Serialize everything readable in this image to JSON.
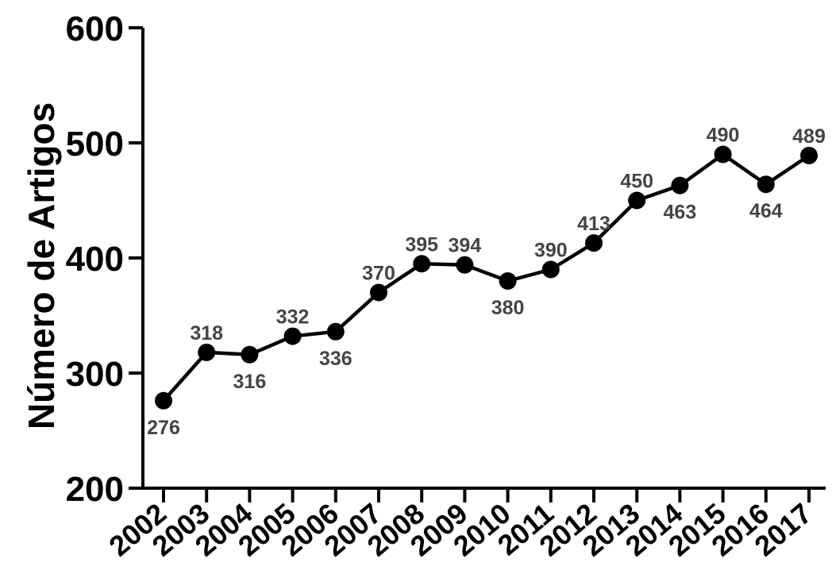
{
  "chart_data": {
    "type": "line",
    "title": "",
    "xlabel": "",
    "ylabel": "Número de Artigos",
    "ylim": [
      200,
      600
    ],
    "yticks": [
      200,
      300,
      400,
      500,
      600
    ],
    "grid": false,
    "categories": [
      "2002",
      "2003",
      "2004",
      "2005",
      "2006",
      "2007",
      "2008",
      "2009",
      "2010",
      "2011",
      "2012",
      "2013",
      "2014",
      "2015",
      "2016",
      "2017"
    ],
    "series": [
      {
        "values": [
          276,
          318,
          316,
          332,
          336,
          370,
          395,
          394,
          380,
          390,
          413,
          450,
          463,
          490,
          464,
          489
        ],
        "labels": [
          "276",
          "318",
          "316",
          "332",
          "336",
          "370",
          "395",
          "394",
          "380",
          "390",
          "413",
          "450",
          "463",
          "490",
          "464",
          "489"
        ],
        "label_positions": [
          "below",
          "above",
          "below",
          "above",
          "below",
          "above",
          "above",
          "above",
          "below",
          "above",
          "above",
          "above",
          "below",
          "above",
          "below",
          "above"
        ]
      }
    ],
    "colors": {
      "line": "#000000",
      "marker": "#000000",
      "data_label": "#444444"
    }
  }
}
